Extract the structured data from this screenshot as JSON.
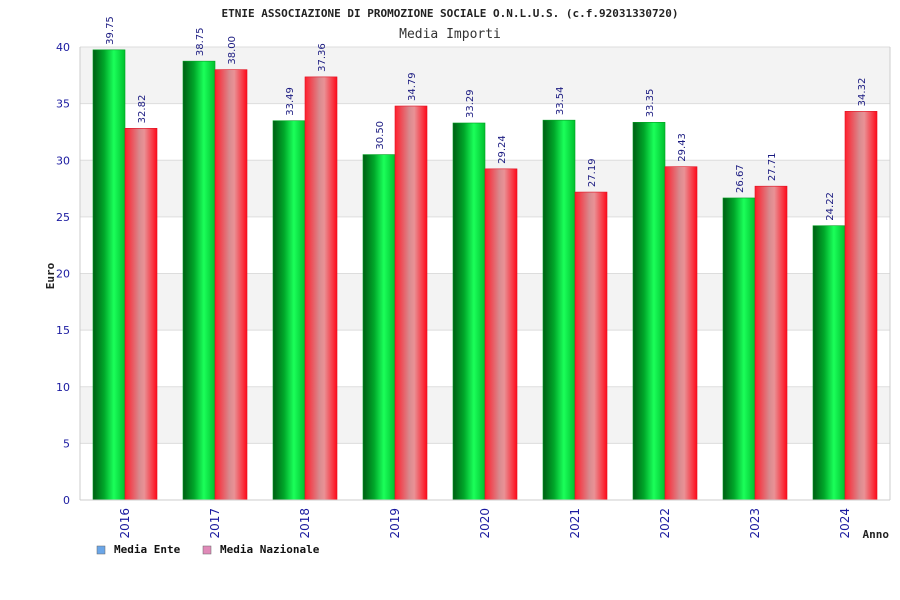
{
  "chart_data": {
    "type": "bar",
    "title": "ETNIE ASSOCIAZIONE DI PROMOZIONE SOCIALE O.N.L.U.S. (c.f.92031330720)",
    "subtitle": "Media Importi",
    "xlabel": "Anno",
    "ylabel": "Euro",
    "ylim": [
      0,
      40
    ],
    "yticks": [
      0,
      5,
      10,
      15,
      20,
      25,
      30,
      35,
      40
    ],
    "categories": [
      "2016",
      "2017",
      "2018",
      "2019",
      "2020",
      "2021",
      "2022",
      "2023",
      "2024"
    ],
    "series": [
      {
        "name": "Media Ente",
        "values": [
          39.75,
          38.75,
          33.49,
          30.5,
          33.29,
          33.54,
          33.35,
          26.67,
          24.22
        ],
        "labels": [
          "39.75",
          "38.75",
          "33.49",
          "30.50",
          "33.29",
          "33.54",
          "33.35",
          "26.67",
          "24.22"
        ],
        "color": "#00b82e",
        "legend_color": "#6aa6e8"
      },
      {
        "name": "Media Nazionale",
        "values": [
          32.82,
          38.0,
          37.36,
          34.79,
          29.24,
          27.19,
          29.43,
          27.71,
          34.32
        ],
        "labels": [
          "32.82",
          "38.00",
          "37.36",
          "34.79",
          "29.24",
          "27.19",
          "29.43",
          "27.71",
          "34.32"
        ],
        "color": "#ff1a2a",
        "legend_color": "#e08ab8"
      }
    ],
    "grid": true,
    "legend_position": "bottom-left"
  }
}
